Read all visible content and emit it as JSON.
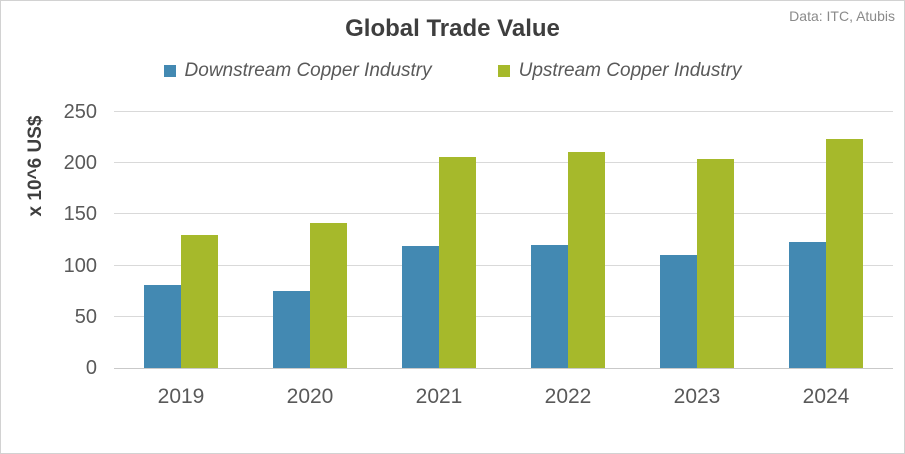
{
  "header": {
    "title": "Global Trade Value",
    "source_note": "Data: ITC, Atubis"
  },
  "legend": {
    "items": [
      {
        "label": "Downstream Copper Industry",
        "color": "#4389b2"
      },
      {
        "label": "Upstream Copper Industry",
        "color": "#a6b92b"
      }
    ]
  },
  "chart_data": {
    "type": "bar",
    "title": "Global Trade Value",
    "categories": [
      "2019",
      "2020",
      "2021",
      "2022",
      "2023",
      "2024"
    ],
    "series": [
      {
        "name": "Downstream Copper Industry",
        "color": "#4389b2",
        "values": [
          81,
          75,
          119,
          120,
          110,
          123
        ]
      },
      {
        "name": "Upstream Copper Industry",
        "color": "#a6b92b",
        "values": [
          130,
          142,
          206,
          211,
          204,
          224
        ]
      }
    ],
    "xlabel": "",
    "ylabel": "x 10^6 US$",
    "ylim": [
      0,
      250
    ],
    "yticks": [
      0,
      50,
      100,
      150,
      200,
      250
    ],
    "grid": true,
    "legend_position": "top",
    "source_note": "Data: ITC, Atubis"
  }
}
